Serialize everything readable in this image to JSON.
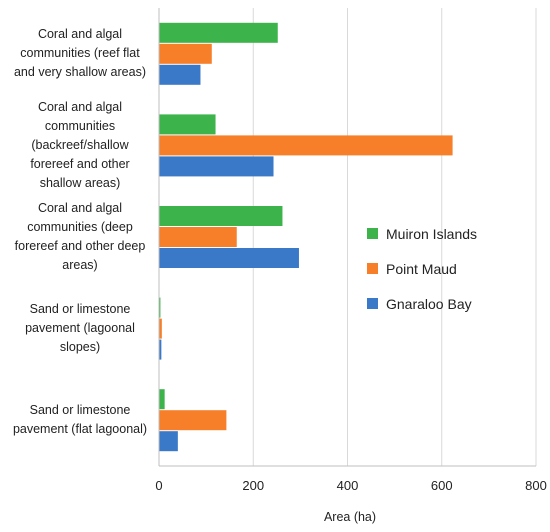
{
  "chart_data": {
    "type": "bar",
    "orientation": "horizontal",
    "categories": [
      "Coral and algal communities (reef flat and very shallow areas)",
      "Coral and algal communities (backreef/shallow forereef and other shallow areas)",
      "Coral and algal communities (deep forereef and other deep areas)",
      "Sand or limestone pavement (lagoonal slopes)",
      "Sand or limestone pavement (flat lagoonal)"
    ],
    "category_lines": [
      [
        "Coral and algal",
        "communities (reef flat",
        "and very shallow areas)"
      ],
      [
        "Coral and algal",
        "communities",
        "(backreef/shallow",
        "forereef and other",
        "shallow areas)"
      ],
      [
        "Coral and algal",
        "communities (deep",
        "forereef and other deep",
        "areas)"
      ],
      [
        "Sand or limestone",
        "pavement (lagoonal",
        "slopes)"
      ],
      [
        "Sand or limestone",
        "pavement (flat lagoonal)"
      ]
    ],
    "series": [
      {
        "name": "Muiron Islands",
        "color": "#3cb44b",
        "values": [
          252,
          120,
          262,
          3,
          12
        ]
      },
      {
        "name": "Point Maud",
        "color": "#f77f2a",
        "values": [
          112,
          623,
          165,
          6,
          143
        ]
      },
      {
        "name": "Gnaraloo Bay",
        "color": "#3a78c8",
        "values": [
          88,
          243,
          297,
          5,
          40
        ]
      }
    ],
    "xlabel": "Area (ha)",
    "ylabel": "",
    "xlim": [
      0,
      800
    ],
    "xticks": [
      "0",
      "200",
      "400",
      "600",
      "800"
    ],
    "grid": true,
    "legend_position": "right"
  }
}
